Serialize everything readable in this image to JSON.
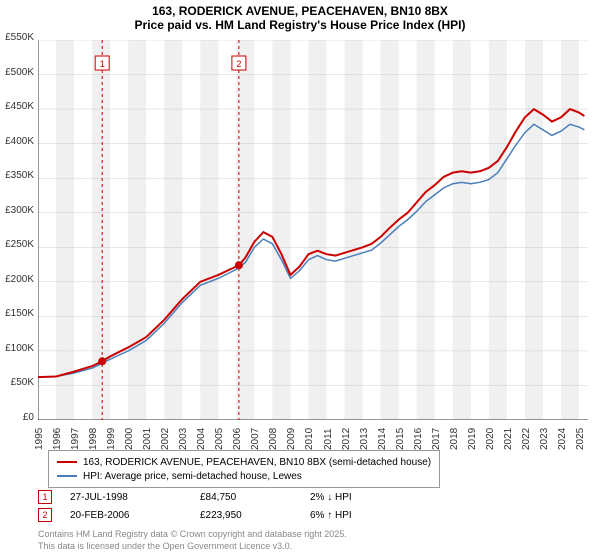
{
  "title_line1": "163, RODERICK AVENUE, PEACEHAVEN, BN10 8BX",
  "title_line2": "Price paid vs. HM Land Registry's House Price Index (HPI)",
  "chart": {
    "type": "line",
    "background_color": "#ffffff",
    "grid_band_color": "#f0f0f0",
    "axis_color": "#333333",
    "xlim": [
      1995,
      2025.5
    ],
    "ylim": [
      0,
      550
    ],
    "ytick_step": 50,
    "yticks": [
      "£0",
      "£50K",
      "£100K",
      "£150K",
      "£200K",
      "£250K",
      "£300K",
      "£350K",
      "£400K",
      "£450K",
      "£500K",
      "£550K"
    ],
    "xticks": [
      "1995",
      "1996",
      "1997",
      "1998",
      "1999",
      "2000",
      "2001",
      "2002",
      "2003",
      "2004",
      "2005",
      "2006",
      "2007",
      "2008",
      "2009",
      "2010",
      "2011",
      "2012",
      "2013",
      "2014",
      "2015",
      "2016",
      "2017",
      "2018",
      "2019",
      "2020",
      "2021",
      "2022",
      "2023",
      "2024",
      "2025"
    ],
    "title_fontsize": 12,
    "label_fontsize": 10,
    "series": [
      {
        "name": "163, RODERICK AVENUE, PEACEHAVEN, BN10 8BX (semi-detached house)",
        "color": "#cc0000",
        "line_width": 2,
        "data": [
          [
            1995.0,
            62
          ],
          [
            1996.0,
            63
          ],
          [
            1997.0,
            70
          ],
          [
            1998.0,
            78
          ],
          [
            1998.56,
            85
          ],
          [
            1999.0,
            92
          ],
          [
            2000.0,
            105
          ],
          [
            2001.0,
            120
          ],
          [
            2002.0,
            145
          ],
          [
            2003.0,
            175
          ],
          [
            2004.0,
            200
          ],
          [
            2005.0,
            210
          ],
          [
            2006.14,
            224
          ],
          [
            2006.5,
            235
          ],
          [
            2007.0,
            258
          ],
          [
            2007.5,
            272
          ],
          [
            2008.0,
            265
          ],
          [
            2008.5,
            240
          ],
          [
            2009.0,
            210
          ],
          [
            2009.5,
            222
          ],
          [
            2010.0,
            240
          ],
          [
            2010.5,
            245
          ],
          [
            2011.0,
            240
          ],
          [
            2011.5,
            238
          ],
          [
            2012.0,
            242
          ],
          [
            2012.5,
            246
          ],
          [
            2013.0,
            250
          ],
          [
            2013.5,
            255
          ],
          [
            2014.0,
            265
          ],
          [
            2014.5,
            278
          ],
          [
            2015.0,
            290
          ],
          [
            2015.5,
            300
          ],
          [
            2016.0,
            315
          ],
          [
            2016.5,
            330
          ],
          [
            2017.0,
            340
          ],
          [
            2017.5,
            352
          ],
          [
            2018.0,
            358
          ],
          [
            2018.5,
            360
          ],
          [
            2019.0,
            358
          ],
          [
            2019.5,
            360
          ],
          [
            2020.0,
            365
          ],
          [
            2020.5,
            375
          ],
          [
            2021.0,
            395
          ],
          [
            2021.5,
            418
          ],
          [
            2022.0,
            438
          ],
          [
            2022.5,
            450
          ],
          [
            2023.0,
            442
          ],
          [
            2023.5,
            432
          ],
          [
            2024.0,
            438
          ],
          [
            2024.5,
            450
          ],
          [
            2025.0,
            445
          ],
          [
            2025.3,
            440
          ]
        ]
      },
      {
        "name": "HPI: Average price, semi-detached house, Lewes",
        "color": "#4a7ebb",
        "line_width": 1.5,
        "data": [
          [
            1995.0,
            62
          ],
          [
            1996.0,
            63
          ],
          [
            1997.0,
            68
          ],
          [
            1998.0,
            75
          ],
          [
            1999.0,
            88
          ],
          [
            2000.0,
            100
          ],
          [
            2001.0,
            115
          ],
          [
            2002.0,
            140
          ],
          [
            2003.0,
            170
          ],
          [
            2004.0,
            195
          ],
          [
            2005.0,
            205
          ],
          [
            2006.0,
            218
          ],
          [
            2006.5,
            228
          ],
          [
            2007.0,
            250
          ],
          [
            2007.5,
            262
          ],
          [
            2008.0,
            255
          ],
          [
            2008.5,
            232
          ],
          [
            2009.0,
            205
          ],
          [
            2009.5,
            216
          ],
          [
            2010.0,
            232
          ],
          [
            2010.5,
            238
          ],
          [
            2011.0,
            232
          ],
          [
            2011.5,
            230
          ],
          [
            2012.0,
            234
          ],
          [
            2012.5,
            238
          ],
          [
            2013.0,
            242
          ],
          [
            2013.5,
            246
          ],
          [
            2014.0,
            256
          ],
          [
            2014.5,
            268
          ],
          [
            2015.0,
            280
          ],
          [
            2015.5,
            290
          ],
          [
            2016.0,
            302
          ],
          [
            2016.5,
            316
          ],
          [
            2017.0,
            326
          ],
          [
            2017.5,
            336
          ],
          [
            2018.0,
            342
          ],
          [
            2018.5,
            344
          ],
          [
            2019.0,
            342
          ],
          [
            2019.5,
            344
          ],
          [
            2020.0,
            348
          ],
          [
            2020.5,
            358
          ],
          [
            2021.0,
            378
          ],
          [
            2021.5,
            398
          ],
          [
            2022.0,
            416
          ],
          [
            2022.5,
            428
          ],
          [
            2023.0,
            420
          ],
          [
            2023.5,
            412
          ],
          [
            2024.0,
            418
          ],
          [
            2024.5,
            428
          ],
          [
            2025.0,
            424
          ],
          [
            2025.3,
            420
          ]
        ]
      }
    ],
    "markers": [
      {
        "id": "1",
        "x": 1998.56,
        "y": 85
      },
      {
        "id": "2",
        "x": 2006.14,
        "y": 224
      }
    ]
  },
  "legend": {
    "items": [
      {
        "color": "#cc0000",
        "label": "163, RODERICK AVENUE, PEACEHAVEN, BN10 8BX (semi-detached house)"
      },
      {
        "color": "#4a7ebb",
        "label": "HPI: Average price, semi-detached house, Lewes"
      }
    ]
  },
  "data_table": {
    "rows": [
      {
        "id": "1",
        "date": "27-JUL-1998",
        "price": "£84,750",
        "pct": "2% ↓ HPI"
      },
      {
        "id": "2",
        "date": "20-FEB-2006",
        "price": "£223,950",
        "pct": "6% ↑ HPI"
      }
    ]
  },
  "footnote_line1": "Contains HM Land Registry data © Crown copyright and database right 2025.",
  "footnote_line2": "This data is licensed under the Open Government Licence v3.0."
}
